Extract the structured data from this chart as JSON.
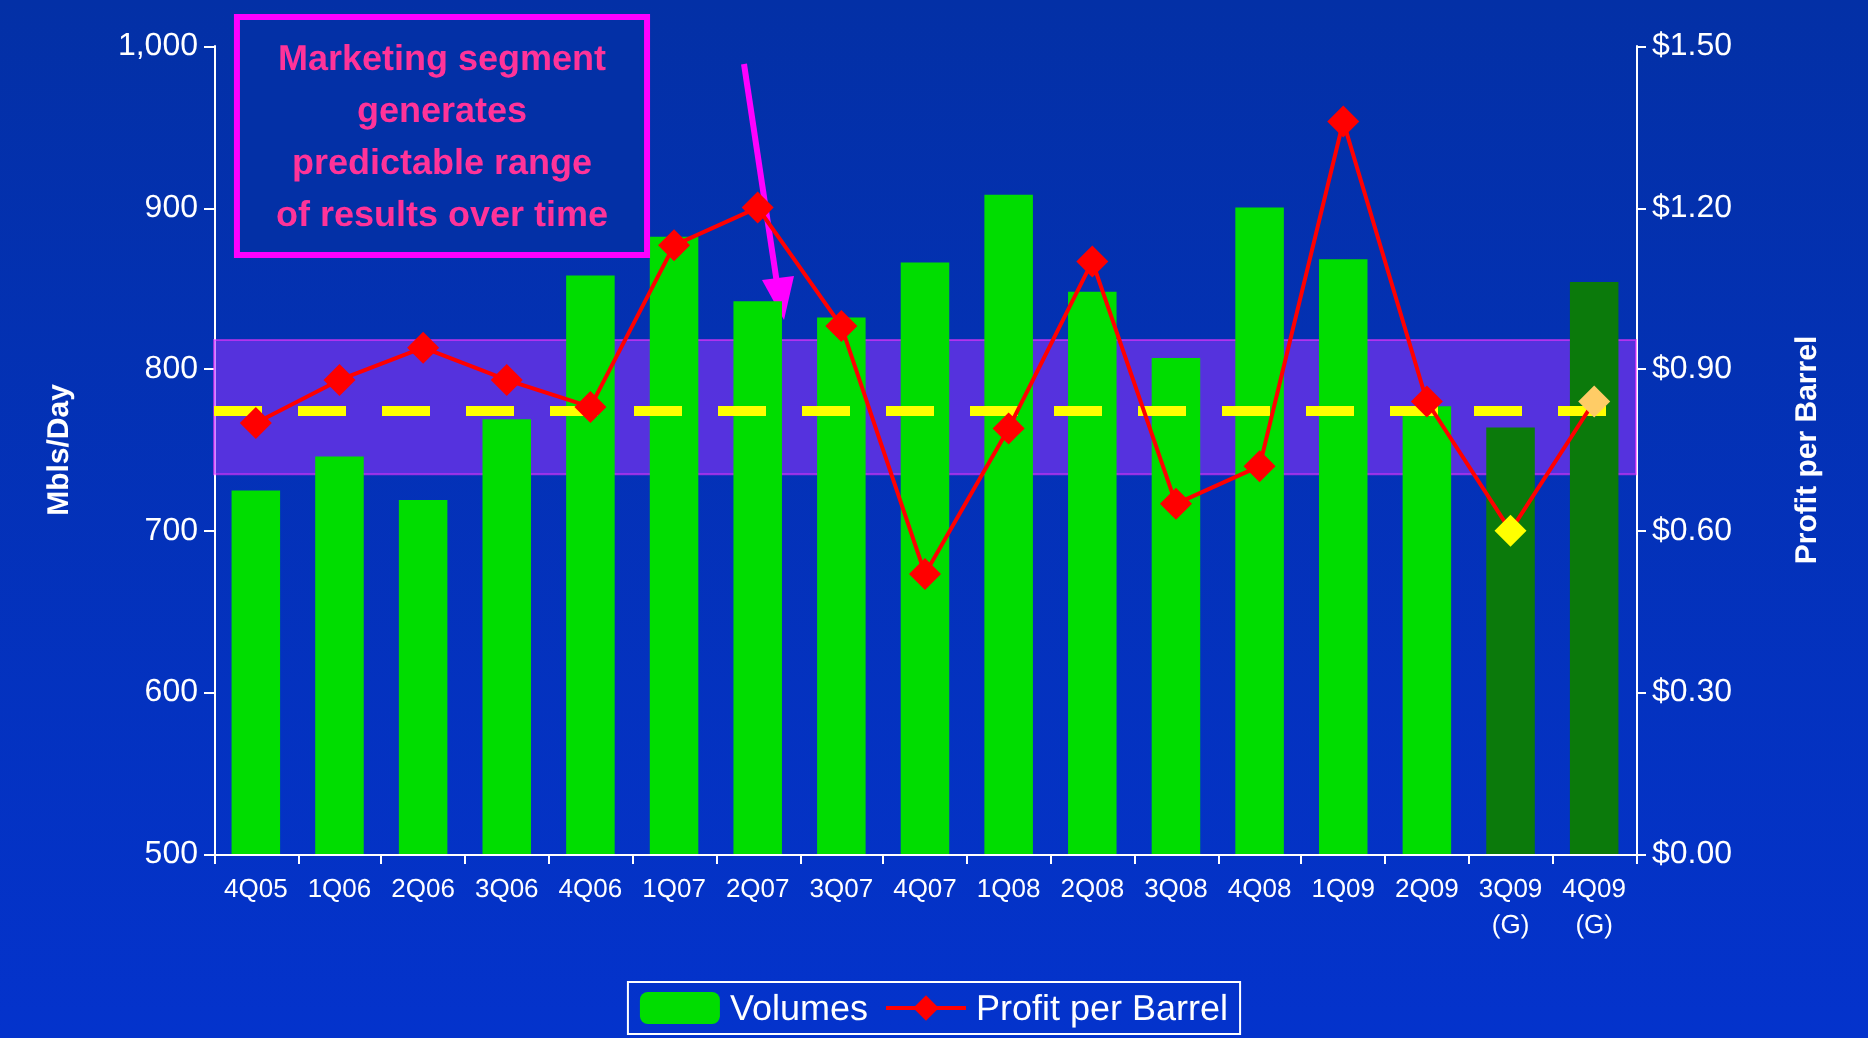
{
  "chart_data": {
    "type": "bar",
    "categories": [
      "4Q05",
      "1Q06",
      "2Q06",
      "3Q06",
      "4Q06",
      "1Q07",
      "2Q07",
      "3Q07",
      "4Q07",
      "1Q08",
      "2Q08",
      "3Q08",
      "4Q08",
      "1Q09",
      "2Q09",
      "3Q09\n(G)",
      "4Q09\n(G)"
    ],
    "series": [
      {
        "name": "Volumes",
        "color": "#00dd00",
        "colors": [
          "#00dd00",
          "#00dd00",
          "#00dd00",
          "#00dd00",
          "#00dd00",
          "#00dd00",
          "#00dd00",
          "#00dd00",
          "#00dd00",
          "#00dd00",
          "#00dd00",
          "#00dd00",
          "#00dd00",
          "#00dd00",
          "#00dd00",
          "#0b7a0b",
          "#0b7a0b"
        ],
        "values": [
          725,
          746,
          719,
          769,
          858,
          882,
          842,
          832,
          866,
          908,
          848,
          807,
          900,
          868,
          777,
          764,
          854
        ]
      },
      {
        "name": "Profit per Barrel",
        "type": "line",
        "axis": "y2",
        "color": "#ff0000",
        "colors": [
          "#ff0000",
          "#ff0000",
          "#ff0000",
          "#ff0000",
          "#ff0000",
          "#ff0000",
          "#ff0000",
          "#ff0000",
          "#ff0000",
          "#ff0000",
          "#ff0000",
          "#ff0000",
          "#ff0000",
          "#ff0000",
          "#ff0000",
          "#ffff00",
          "#ffcc66"
        ],
        "marker": "diamond",
        "values": [
          0.8,
          0.88,
          0.94,
          0.88,
          0.83,
          1.13,
          1.2,
          0.98,
          0.52,
          0.79,
          1.1,
          0.65,
          0.72,
          1.36,
          0.84,
          0.6,
          0.84
        ]
      }
    ],
    "ylabel": "Mbls/Day",
    "y2label": "Profit per Barrel",
    "ylim": [
      500,
      1000
    ],
    "yticks": [
      500,
      600,
      700,
      800,
      900,
      {
        "value": 1000,
        "label": "1,000"
      }
    ],
    "y2lim": [
      0,
      1.5
    ],
    "y2ticks": [
      {
        "value": 0,
        "label": "$0.00"
      },
      {
        "value": 0.3,
        "label": "$0.30"
      },
      {
        "value": 0.6,
        "label": "$0.60"
      },
      {
        "value": 0.9,
        "label": "$0.90"
      },
      {
        "value": 1.2,
        "label": "$1.20"
      },
      {
        "value": 1.5,
        "label": "$1.50"
      }
    ],
    "bands": [
      {
        "axis": "y",
        "from": 735,
        "to": 818,
        "color": "#9933ff"
      }
    ],
    "ref_lines": [
      {
        "axis": "y",
        "value": 774,
        "color": "#ffff00",
        "line_style": "dashed"
      }
    ],
    "annotations": [
      "Marketing segment\ngenerates\npredictable range\nof results over time"
    ],
    "legend": "bottom",
    "grid": false
  }
}
